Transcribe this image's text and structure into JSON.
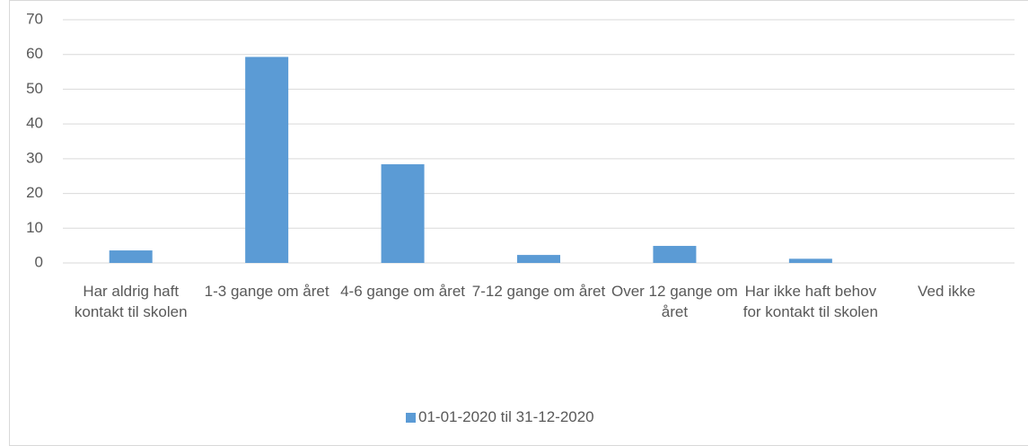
{
  "chart_data": {
    "type": "bar",
    "categories": [
      "Har aldrig haft kontakt til skolen",
      "1-3 gange om året",
      "4-6 gange om året",
      "7-12 gange om året",
      "Over 12 gange om året",
      "Har ikke haft behov for kontakt til skolen",
      "Ved ikke"
    ],
    "series": [
      {
        "name": "01-01-2020 til 31-12-2020",
        "color": "#5b9bd5",
        "values": [
          3.6,
          59.3,
          28.4,
          2.3,
          4.9,
          1.2,
          0
        ]
      }
    ],
    "ylim": [
      0,
      70
    ],
    "yticks": [
      0,
      10,
      20,
      30,
      40,
      50,
      60,
      70
    ],
    "grid": true,
    "legend": "bottom"
  }
}
